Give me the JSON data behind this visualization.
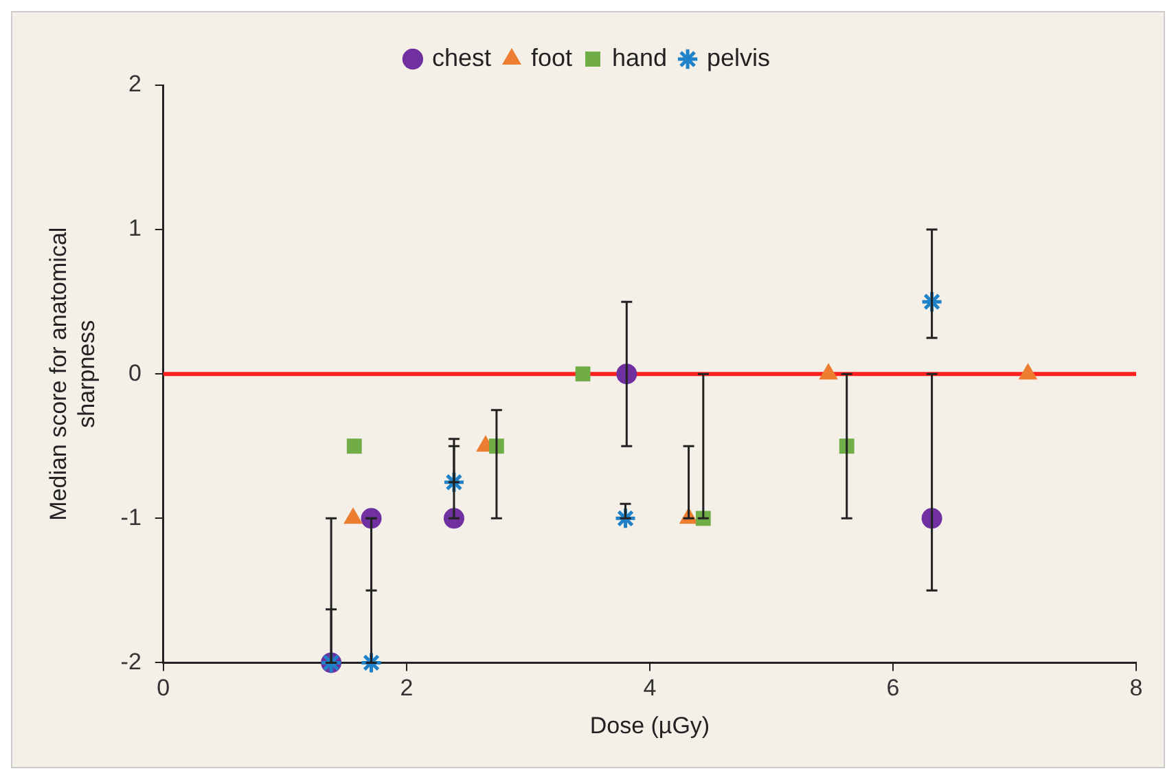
{
  "chart_data": {
    "type": "scatter",
    "xlabel": "Dose (µGy)",
    "ylabel": "Median score for anatomical sharpness",
    "xlim": [
      0,
      8
    ],
    "xticks": [
      0,
      2,
      4,
      6,
      8
    ],
    "ylim": [
      -2,
      2
    ],
    "yticks": [
      -2,
      -1,
      0,
      1,
      2
    ],
    "grid": false,
    "legend": "top",
    "ref_lines": [
      {
        "axis": "y",
        "value": 0,
        "color": "#ff2020"
      }
    ],
    "series": [
      {
        "name": "chest",
        "color": "#7030a0",
        "marker": "circle",
        "x": [
          1.38,
          1.71,
          2.39,
          3.81,
          6.32
        ],
        "values": [
          -2,
          -1,
          -1,
          0,
          -1
        ],
        "errors": [
          [
            -2,
            -1
          ],
          [
            -1.5,
            -1
          ],
          [
            -1,
            -0.5
          ],
          [
            -0.5,
            0.5
          ],
          [
            -1.5,
            0
          ]
        ]
      },
      {
        "name": "foot",
        "color": "#ed7d31",
        "marker": "triangle",
        "x": [
          1.56,
          2.65,
          4.32,
          5.47,
          7.11
        ],
        "values": [
          -1,
          -0.5,
          -1,
          0,
          0
        ],
        "errors": [
          null,
          null,
          [
            -1,
            -0.5
          ],
          null,
          null
        ]
      },
      {
        "name": "hand",
        "color": "#70ad47",
        "marker": "square",
        "x": [
          1.57,
          2.74,
          3.45,
          4.44,
          5.62
        ],
        "values": [
          -0.5,
          -0.5,
          0,
          -1,
          -0.5
        ],
        "errors": [
          null,
          [
            -1,
            -0.25
          ],
          null,
          [
            -1,
            0
          ],
          [
            -1,
            0
          ]
        ]
      },
      {
        "name": "pelvis",
        "color": "#1f82c8",
        "marker": "cross",
        "x": [
          1.38,
          1.71,
          2.39,
          3.8,
          6.32
        ],
        "values": [
          -2,
          -2,
          -0.75,
          -1,
          0.5
        ],
        "errors": [
          [
            -2,
            -1.63
          ],
          [
            -2,
            -1
          ],
          [
            -0.75,
            -0.45
          ],
          [
            -1,
            -0.9
          ],
          [
            0.25,
            1
          ]
        ]
      }
    ]
  }
}
